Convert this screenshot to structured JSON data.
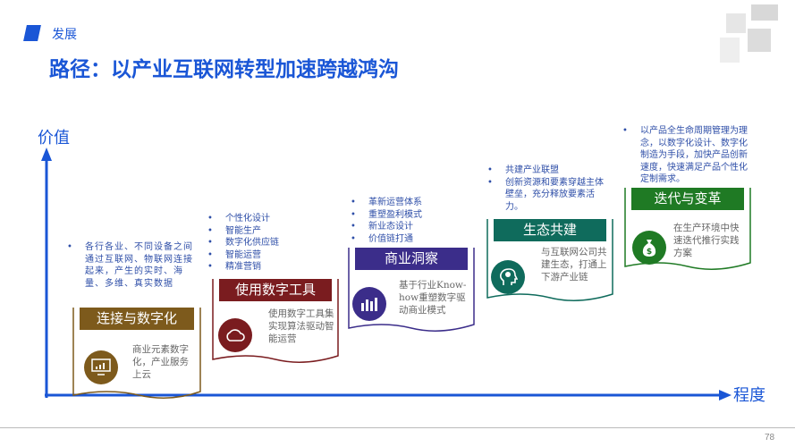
{
  "header": {
    "section": "发展",
    "title": "路径：以产业互联网转型加速跨越鸿沟"
  },
  "axes": {
    "y_label": "价值",
    "x_label": "程度"
  },
  "colors": {
    "accent": "#1a56d6",
    "stage1": "#7d5a1c",
    "stage2": "#7a1c1f",
    "stage3": "#3b2d8a",
    "stage4": "#0f6b5c",
    "stage5": "#1f7a24"
  },
  "stages": [
    {
      "title": "连接与数字化",
      "icon": "monitor-chart-icon",
      "desc": "商业元素数字化，产业服务上云",
      "bullets": [
        "各行各业、不同设备之间通过互联网、物联网连接起来，产生的实时、海量、多维、真实数据"
      ]
    },
    {
      "title": "使用数字工具",
      "icon": "cloud-icon",
      "desc": "使用数字工具集实现算法驱动智能运营",
      "bullets": [
        "个性化设计",
        "智能生产",
        "数字化供应链",
        "智能运营",
        "精准营销"
      ]
    },
    {
      "title": "商业洞察",
      "icon": "bar-chart-icon",
      "desc": "基于行业Know-how重塑数字驱动商业模式",
      "bullets": [
        "革新运营体系",
        "重塑盈利模式",
        "新业态设计",
        "价值链打通"
      ]
    },
    {
      "title": "生态共建",
      "icon": "brain-head-icon",
      "desc": "与互联网公司共建生态，打通上下游产业链",
      "bullets": [
        "共建产业联盟",
        "创新资源和要素穿越主体壁垒，充分释放要素活力。"
      ]
    },
    {
      "title": "迭代与变革",
      "icon": "money-bag-icon",
      "desc": "在生产环境中快速迭代推行实践方案",
      "bullets": [
        "以产品全生命周期管理为理念，以数字化设计、数字化制造为手段，加快产品创新速度，快速满足产品个性化定制需求。"
      ]
    }
  ],
  "footer": {
    "page": "78"
  }
}
